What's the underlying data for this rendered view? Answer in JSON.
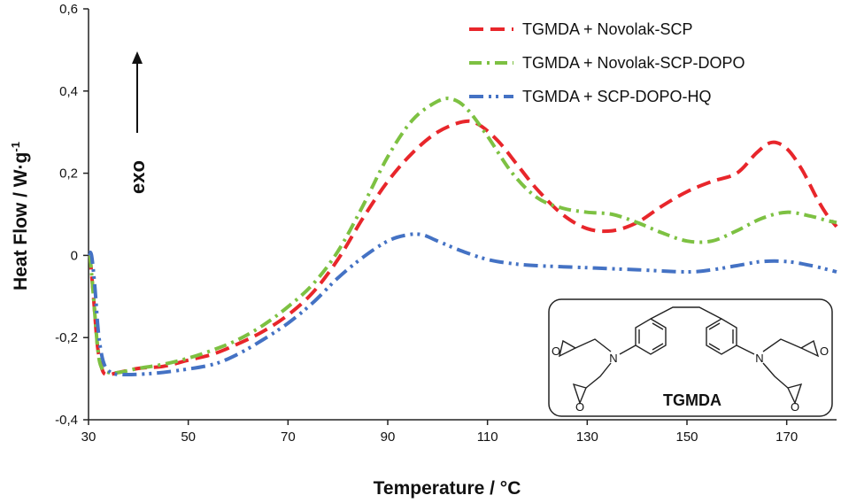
{
  "chart_data": {
    "type": "line",
    "title": "",
    "xlabel": "Temperature  / °C",
    "ylabel": "Heat Flow  / W·g",
    "ylabel_superscript": "-1",
    "xlim": [
      30,
      180
    ],
    "ylim": [
      -0.4,
      0.6
    ],
    "xticks": [
      30,
      50,
      70,
      90,
      110,
      130,
      150,
      170
    ],
    "yticks": [
      {
        "value": -0.4,
        "label": "-0,4"
      },
      {
        "value": -0.2,
        "label": "-0,2"
      },
      {
        "value": 0,
        "label": "0"
      },
      {
        "value": 0.2,
        "label": "0,2"
      },
      {
        "value": 0.4,
        "label": "0,4"
      },
      {
        "value": 0.6,
        "label": "0,6"
      }
    ],
    "legend_position": "top-right",
    "annotation": "exo",
    "series": [
      {
        "name": "TGMDA + Novolak-SCP",
        "color": "#e8262b",
        "style": "dashed",
        "points": [
          [
            30.3,
            0.0
          ],
          [
            31,
            -0.1
          ],
          [
            31.8,
            -0.22
          ],
          [
            32.8,
            -0.28
          ],
          [
            34,
            -0.29
          ],
          [
            36,
            -0.285
          ],
          [
            40,
            -0.275
          ],
          [
            45,
            -0.27
          ],
          [
            50,
            -0.255
          ],
          [
            55,
            -0.24
          ],
          [
            60,
            -0.215
          ],
          [
            65,
            -0.185
          ],
          [
            70,
            -0.145
          ],
          [
            75,
            -0.09
          ],
          [
            80,
            -0.01
          ],
          [
            85,
            0.09
          ],
          [
            90,
            0.18
          ],
          [
            95,
            0.25
          ],
          [
            100,
            0.3
          ],
          [
            105,
            0.325
          ],
          [
            108,
            0.32
          ],
          [
            112,
            0.28
          ],
          [
            116,
            0.22
          ],
          [
            120,
            0.16
          ],
          [
            125,
            0.1
          ],
          [
            130,
            0.065
          ],
          [
            135,
            0.06
          ],
          [
            140,
            0.08
          ],
          [
            145,
            0.12
          ],
          [
            150,
            0.155
          ],
          [
            155,
            0.18
          ],
          [
            160,
            0.2
          ],
          [
            164,
            0.25
          ],
          [
            167,
            0.275
          ],
          [
            170,
            0.26
          ],
          [
            173,
            0.21
          ],
          [
            176,
            0.14
          ],
          [
            178,
            0.1
          ],
          [
            180,
            0.07
          ]
        ]
      },
      {
        "name": "TGMDA + Novolak-SCP-DOPO",
        "color": "#7dc142",
        "style": "dash-dot",
        "points": [
          [
            30.3,
            0.0
          ],
          [
            31,
            -0.1
          ],
          [
            31.8,
            -0.22
          ],
          [
            32.5,
            -0.27
          ],
          [
            34,
            -0.285
          ],
          [
            36,
            -0.285
          ],
          [
            40,
            -0.275
          ],
          [
            45,
            -0.265
          ],
          [
            50,
            -0.25
          ],
          [
            55,
            -0.23
          ],
          [
            60,
            -0.205
          ],
          [
            65,
            -0.17
          ],
          [
            70,
            -0.125
          ],
          [
            75,
            -0.07
          ],
          [
            80,
            0.01
          ],
          [
            85,
            0.12
          ],
          [
            90,
            0.24
          ],
          [
            95,
            0.33
          ],
          [
            100,
            0.375
          ],
          [
            103,
            0.38
          ],
          [
            106,
            0.355
          ],
          [
            110,
            0.29
          ],
          [
            115,
            0.2
          ],
          [
            120,
            0.14
          ],
          [
            125,
            0.115
          ],
          [
            130,
            0.105
          ],
          [
            135,
            0.1
          ],
          [
            140,
            0.08
          ],
          [
            145,
            0.055
          ],
          [
            150,
            0.035
          ],
          [
            155,
            0.035
          ],
          [
            160,
            0.06
          ],
          [
            165,
            0.09
          ],
          [
            170,
            0.105
          ],
          [
            175,
            0.095
          ],
          [
            178,
            0.085
          ],
          [
            180,
            0.08
          ]
        ]
      },
      {
        "name": "TGMDA + SCP-DOPO-HQ",
        "color": "#4472c4",
        "style": "dash-dot-dot",
        "points": [
          [
            30,
            0.005
          ],
          [
            30.6,
            0.0
          ],
          [
            31.3,
            -0.08
          ],
          [
            32,
            -0.19
          ],
          [
            33,
            -0.26
          ],
          [
            34.5,
            -0.285
          ],
          [
            37,
            -0.29
          ],
          [
            42,
            -0.288
          ],
          [
            48,
            -0.28
          ],
          [
            55,
            -0.265
          ],
          [
            60,
            -0.24
          ],
          [
            65,
            -0.205
          ],
          [
            70,
            -0.165
          ],
          [
            75,
            -0.115
          ],
          [
            80,
            -0.055
          ],
          [
            85,
            -0.005
          ],
          [
            90,
            0.035
          ],
          [
            94,
            0.05
          ],
          [
            97,
            0.05
          ],
          [
            100,
            0.035
          ],
          [
            105,
            0.01
          ],
          [
            110,
            -0.01
          ],
          [
            115,
            -0.02
          ],
          [
            120,
            -0.025
          ],
          [
            130,
            -0.03
          ],
          [
            140,
            -0.035
          ],
          [
            150,
            -0.04
          ],
          [
            155,
            -0.035
          ],
          [
            160,
            -0.025
          ],
          [
            165,
            -0.015
          ],
          [
            170,
            -0.015
          ],
          [
            175,
            -0.025
          ],
          [
            180,
            -0.04
          ]
        ]
      }
    ]
  },
  "inset": {
    "label": "TGMDA",
    "atoms": {
      "n1": "N",
      "n2": "N",
      "o1": "O",
      "o2": "O",
      "o3": "O",
      "o4": "O"
    }
  }
}
